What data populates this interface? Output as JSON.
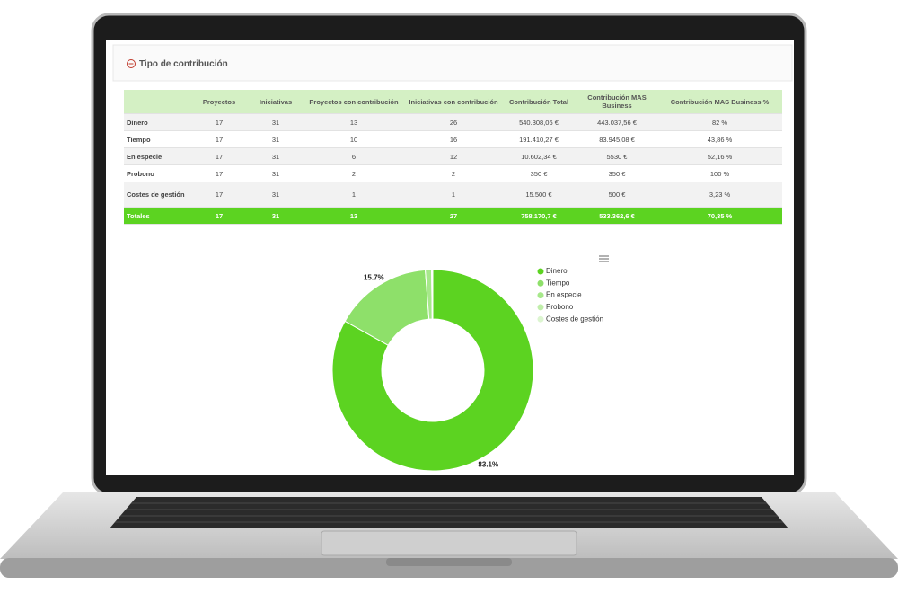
{
  "section": {
    "title": "Tipo de contribución"
  },
  "table": {
    "columns": [
      "Proyectos",
      "Iniciativas",
      "Proyectos con contribución",
      "Iniciativas con contribución",
      "Contribución Total",
      "Contribución MAS Business",
      "Contribución MAS Business %"
    ],
    "rows": [
      {
        "label": "Dinero",
        "cells": [
          "17",
          "31",
          "13",
          "26",
          "540.308,06 €",
          "443.037,56 €",
          "82 %"
        ]
      },
      {
        "label": "Tiempo",
        "cells": [
          "17",
          "31",
          "10",
          "16",
          "191.410,27 €",
          "83.945,08 €",
          "43,86 %"
        ]
      },
      {
        "label": "En especie",
        "cells": [
          "17",
          "31",
          "6",
          "12",
          "10.602,34 €",
          "5530 €",
          "52,16 %"
        ]
      },
      {
        "label": "Probono",
        "cells": [
          "17",
          "31",
          "2",
          "2",
          "350 €",
          "350 €",
          "100 %"
        ]
      },
      {
        "label": "Costes de gestión",
        "cells": [
          "17",
          "31",
          "1",
          "1",
          "15.500 €",
          "500 €",
          "3,23 %"
        ]
      }
    ],
    "totals": {
      "label": "Totales",
      "cells": [
        "17",
        "31",
        "13",
        "27",
        "758.170,7 €",
        "533.362,6 €",
        "70,35 %"
      ]
    }
  },
  "chart_data": {
    "type": "pie",
    "donut": true,
    "categories": [
      "Dinero",
      "Tiempo",
      "En especie",
      "Probono",
      "Costes de gestión"
    ],
    "values": [
      83.1,
      15.7,
      1.0,
      0.1,
      0.1
    ],
    "value_labels": [
      "83.1%",
      "15.7%",
      null,
      null,
      null
    ],
    "colors": [
      "#5cd321",
      "#8ee06a",
      "#a6e88a",
      "#c0eeaa",
      "#dcf5d0"
    ],
    "legend": "right"
  }
}
